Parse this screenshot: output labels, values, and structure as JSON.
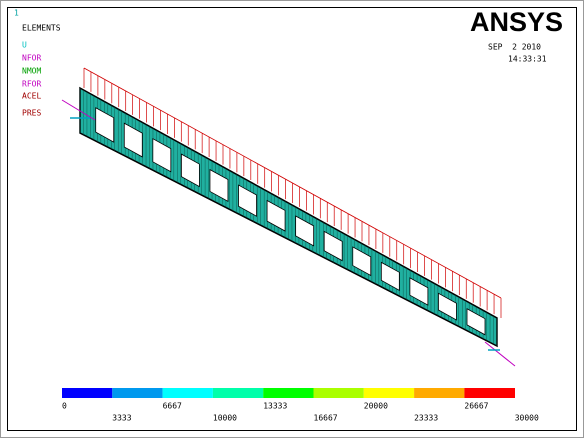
{
  "window": {
    "number": "1",
    "label": "ELEMENTS"
  },
  "symbols": [
    "U",
    "NFOR",
    "NMOM",
    "RFOR",
    "ACEL",
    "PRES"
  ],
  "logo": "ANSYS",
  "date": "SEP  2 2010",
  "time": "14:33:31",
  "legend": {
    "labels": [
      "0",
      "3333",
      "6667",
      "10000",
      "13333",
      "16667",
      "20000",
      "23333",
      "26667",
      "30000"
    ]
  }
}
